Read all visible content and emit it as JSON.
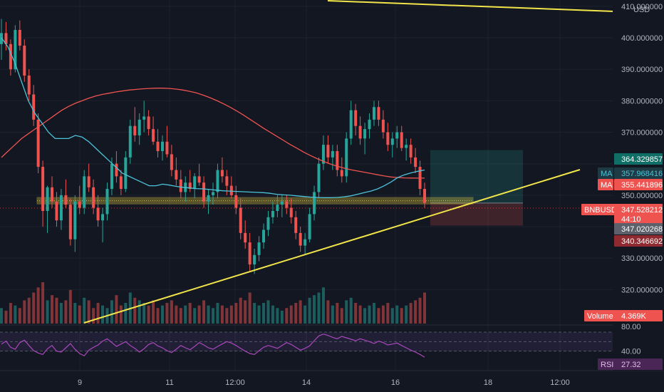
{
  "chart_data": {
    "type": "candlestick",
    "symbol": "BNBUSD",
    "currency": "USD",
    "price_axis": {
      "ticks": [
        "410.000000",
        "400.000000",
        "390.000000",
        "380.000000",
        "370.000000",
        "350.000000",
        "330.000000",
        "320.000000"
      ],
      "range": [
        309,
        412
      ]
    },
    "time_axis": {
      "ticks": [
        "9",
        "11",
        "12:00",
        "14",
        "16",
        "18",
        "12:00"
      ]
    },
    "last_price": 347.528212,
    "indicators": {
      "ma_fast": {
        "label": "MA",
        "value": "357.968416",
        "color": "#4cc3d9"
      },
      "ma_slow": {
        "label": "MA",
        "value": "355.441896",
        "color": "#ef5350"
      },
      "volume": {
        "label": "Volume",
        "value": "4.369K"
      },
      "rsi": {
        "label": "RSI",
        "value": "27.32",
        "color": "#ab47bc",
        "levels": [
          "80.00",
          "40.00"
        ]
      }
    },
    "labels": {
      "target": "364.329857",
      "symbol_price": "347.528212",
      "countdown": "44:10",
      "cursor_price": "347.020268",
      "stop": "340.346692"
    },
    "position_tool": {
      "entry": 347.5,
      "target": 364.33,
      "stop": 340.35
    },
    "support_zone": [
      347.2,
      349.3
    ],
    "candles": [
      [
        398.0,
        406.0,
        393.0,
        401.5
      ],
      [
        401.5,
        405.0,
        396.0,
        398.0
      ],
      [
        398.0,
        399.5,
        388.0,
        390.0
      ],
      [
        390.0,
        404.0,
        389.0,
        402.5
      ],
      [
        402.5,
        405.5,
        396.0,
        397.5
      ],
      [
        397.5,
        399.5,
        386.0,
        388.0
      ],
      [
        388.0,
        390.0,
        380.0,
        382.0
      ],
      [
        382.0,
        385.0,
        372.0,
        374.0
      ],
      [
        374.0,
        376.0,
        357.0,
        359.0
      ],
      [
        359.0,
        361.0,
        340.0,
        345.0
      ],
      [
        345.0,
        353.0,
        338.0,
        352.5
      ],
      [
        352.5,
        356.0,
        346.0,
        348.0
      ],
      [
        348.0,
        351.0,
        340.0,
        342.0
      ],
      [
        342.0,
        352.0,
        339.0,
        350.0
      ],
      [
        350.0,
        355.0,
        346.0,
        347.0
      ],
      [
        347.0,
        349.0,
        334.0,
        336.0
      ],
      [
        336.0,
        350.0,
        332.0,
        348.0
      ],
      [
        348.0,
        353.0,
        344.0,
        346.0
      ],
      [
        346.0,
        358.0,
        344.0,
        356.0
      ],
      [
        356.0,
        360.0,
        351.0,
        352.5
      ],
      [
        352.5,
        355.0,
        344.0,
        346.0
      ],
      [
        346.0,
        350.0,
        340.0,
        342.0
      ],
      [
        342.0,
        346.0,
        335.0,
        344.0
      ],
      [
        344.0,
        354.0,
        342.0,
        352.0
      ],
      [
        352.0,
        362.0,
        350.0,
        360.0
      ],
      [
        360.0,
        364.0,
        354.0,
        356.0
      ],
      [
        356.0,
        358.0,
        350.0,
        352.0
      ],
      [
        352.0,
        364.0,
        351.0,
        362.0
      ],
      [
        362.0,
        374.0,
        360.0,
        372.0
      ],
      [
        372.0,
        378.0,
        367.0,
        369.0
      ],
      [
        369.0,
        376.0,
        366.0,
        374.0
      ],
      [
        374.0,
        380.0,
        370.0,
        375.0
      ],
      [
        375.0,
        377.0,
        369.0,
        371.0
      ],
      [
        371.0,
        375.0,
        366.0,
        367.0
      ],
      [
        367.0,
        371.0,
        362.0,
        364.0
      ],
      [
        364.0,
        369.0,
        361.0,
        367.0
      ],
      [
        367.0,
        372.0,
        362.0,
        363.0
      ],
      [
        363.0,
        366.0,
        356.0,
        358.0
      ],
      [
        358.0,
        362.0,
        353.0,
        355.0
      ],
      [
        355.0,
        358.0,
        349.0,
        351.0
      ],
      [
        351.0,
        356.0,
        348.0,
        354.0
      ],
      [
        354.0,
        358.0,
        351.0,
        352.0
      ],
      [
        352.0,
        357.0,
        349.0,
        356.0
      ],
      [
        356.0,
        360.0,
        353.0,
        354.0
      ],
      [
        354.0,
        356.0,
        346.0,
        348.0
      ],
      [
        348.0,
        352.0,
        344.0,
        350.0
      ],
      [
        350.0,
        354.0,
        347.0,
        351.0
      ],
      [
        351.0,
        360.0,
        349.0,
        358.0
      ],
      [
        358.0,
        362.0,
        354.0,
        356.0
      ],
      [
        356.0,
        358.0,
        350.0,
        353.0
      ],
      [
        353.0,
        356.0,
        349.0,
        350.0
      ],
      [
        350.0,
        353.0,
        344.0,
        346.0
      ],
      [
        346.0,
        349.0,
        336.0,
        338.0
      ],
      [
        338.0,
        342.0,
        333.0,
        335.0
      ],
      [
        335.0,
        338.0,
        326.0,
        328.0
      ],
      [
        328.0,
        333.0,
        325.0,
        331.0
      ],
      [
        331.0,
        337.0,
        329.0,
        335.0
      ],
      [
        335.0,
        341.0,
        333.0,
        339.0
      ],
      [
        339.0,
        345.0,
        337.0,
        343.0
      ],
      [
        343.0,
        348.0,
        341.0,
        345.0
      ],
      [
        345.0,
        350.0,
        343.0,
        347.0
      ],
      [
        347.0,
        350.0,
        343.0,
        348.0
      ],
      [
        348.0,
        350.0,
        344.0,
        346.0
      ],
      [
        346.0,
        349.0,
        341.0,
        343.0
      ],
      [
        343.0,
        345.0,
        336.0,
        338.0
      ],
      [
        338.0,
        340.0,
        332.0,
        334.0
      ],
      [
        334.0,
        338.0,
        331.0,
        336.0
      ],
      [
        336.0,
        346.0,
        335.0,
        344.0
      ],
      [
        344.0,
        353.0,
        342.0,
        351.0
      ],
      [
        351.0,
        362.0,
        349.0,
        360.0
      ],
      [
        360.0,
        369.0,
        358.0,
        366.0
      ],
      [
        366.0,
        369.0,
        360.0,
        362.0
      ],
      [
        362.0,
        366.0,
        358.0,
        364.0
      ],
      [
        364.0,
        366.0,
        356.0,
        358.0
      ],
      [
        358.0,
        362.0,
        354.0,
        356.0
      ],
      [
        356.0,
        370.0,
        354.0,
        368.0
      ],
      [
        368.0,
        380.0,
        366.0,
        377.0
      ],
      [
        377.0,
        379.0,
        369.0,
        372.0
      ],
      [
        372.0,
        375.0,
        366.0,
        368.0
      ],
      [
        368.0,
        373.0,
        363.0,
        371.0
      ],
      [
        371.0,
        376.0,
        368.0,
        374.0
      ],
      [
        374.0,
        380.0,
        372.0,
        378.0
      ],
      [
        378.0,
        380.0,
        372.0,
        374.0
      ],
      [
        374.0,
        377.0,
        368.0,
        370.0
      ],
      [
        370.0,
        373.0,
        364.0,
        366.0
      ],
      [
        366.0,
        370.0,
        362.0,
        368.0
      ],
      [
        368.0,
        372.0,
        365.0,
        370.0
      ],
      [
        370.0,
        372.0,
        364.0,
        365.0
      ],
      [
        365.0,
        368.0,
        361.0,
        366.0
      ],
      [
        366.0,
        368.0,
        360.0,
        362.0
      ],
      [
        362.0,
        365.0,
        357.0,
        359.0
      ],
      [
        359.0,
        361.0,
        350.0,
        352.0
      ],
      [
        352.0,
        354.0,
        346.0,
        347.528
      ]
    ],
    "volumes": [
      6,
      5,
      8,
      7,
      6,
      9,
      10,
      12,
      14,
      16,
      9,
      11,
      10,
      8,
      9,
      13,
      8,
      7,
      10,
      9,
      6,
      8,
      7,
      6,
      9,
      11,
      7,
      8,
      12,
      10,
      9,
      8,
      7,
      9,
      6,
      7,
      8,
      9,
      7,
      6,
      7,
      8,
      6,
      7,
      9,
      7,
      6,
      8,
      7,
      6,
      7,
      8,
      10,
      9,
      12,
      8,
      7,
      8,
      9,
      7,
      6,
      5,
      6,
      7,
      8,
      9,
      7,
      10,
      11,
      12,
      14,
      9,
      7,
      8,
      6,
      9,
      10,
      8,
      7,
      6,
      7,
      8,
      6,
      7,
      8,
      6,
      7,
      6,
      7,
      8,
      9,
      10,
      12
    ],
    "ma_fast_series": [
      400,
      397,
      392,
      386,
      380,
      376,
      373,
      370,
      368,
      368,
      368,
      369,
      368.5,
      367,
      365,
      363,
      361,
      359,
      357,
      356,
      355,
      354,
      353,
      353,
      353.5,
      353.2,
      352.8,
      352.5,
      352.3,
      352.1,
      352,
      351.8,
      351.6,
      351.4,
      351.3,
      351.2,
      351.1,
      351,
      350.9,
      350.8,
      350.6,
      350.3,
      350.1,
      350,
      349.8,
      349.6,
      349.4,
      349.3,
      349.2,
      349.2,
      349.3,
      349.5,
      349.8,
      350.3,
      350.8,
      351.3,
      352,
      353,
      354.2,
      355.6,
      356.5,
      357.1,
      357.6,
      358
    ],
    "ma_slow_series": [
      362,
      364,
      366,
      368,
      369.5,
      371,
      372.5,
      374,
      375.5,
      377,
      378.2,
      379.2,
      380,
      380.8,
      381.5,
      382,
      382.4,
      382.8,
      383.1,
      383.4,
      383.6,
      383.8,
      383.9,
      384,
      384,
      383.9,
      383.7,
      383.4,
      383,
      382.5,
      381.8,
      381,
      380.1,
      379.1,
      378,
      376.8,
      375.5,
      374.1,
      372.7,
      371.3,
      370,
      368.7,
      367.4,
      366.1,
      364.9,
      363.7,
      362.6,
      361.6,
      360.7,
      359.9,
      359.2,
      358.6,
      358.1,
      357.7,
      357.3,
      356.9,
      356.5,
      356.1,
      355.8,
      355.6,
      355.5,
      355.45,
      355.44,
      355.44
    ],
    "rsi_series": [
      55,
      61,
      48,
      44,
      58,
      63,
      52,
      41,
      36,
      33,
      45,
      52,
      40,
      38,
      47,
      56,
      44,
      35,
      30,
      42,
      48,
      53,
      61,
      66,
      58,
      50,
      55,
      60,
      52,
      46,
      38,
      45,
      54,
      58,
      51,
      47,
      41,
      37,
      44,
      52,
      47,
      43,
      50,
      58,
      53,
      47,
      44,
      50,
      55,
      60,
      57,
      52,
      46,
      40,
      35,
      33,
      41,
      48,
      52,
      49,
      46,
      52,
      58,
      54,
      48,
      42,
      46,
      51,
      62,
      72,
      76,
      73,
      69,
      66,
      71,
      68,
      65,
      62,
      66,
      63,
      60,
      56,
      61,
      58,
      53,
      55,
      57,
      52,
      47,
      42,
      38,
      33,
      27.32
    ]
  }
}
